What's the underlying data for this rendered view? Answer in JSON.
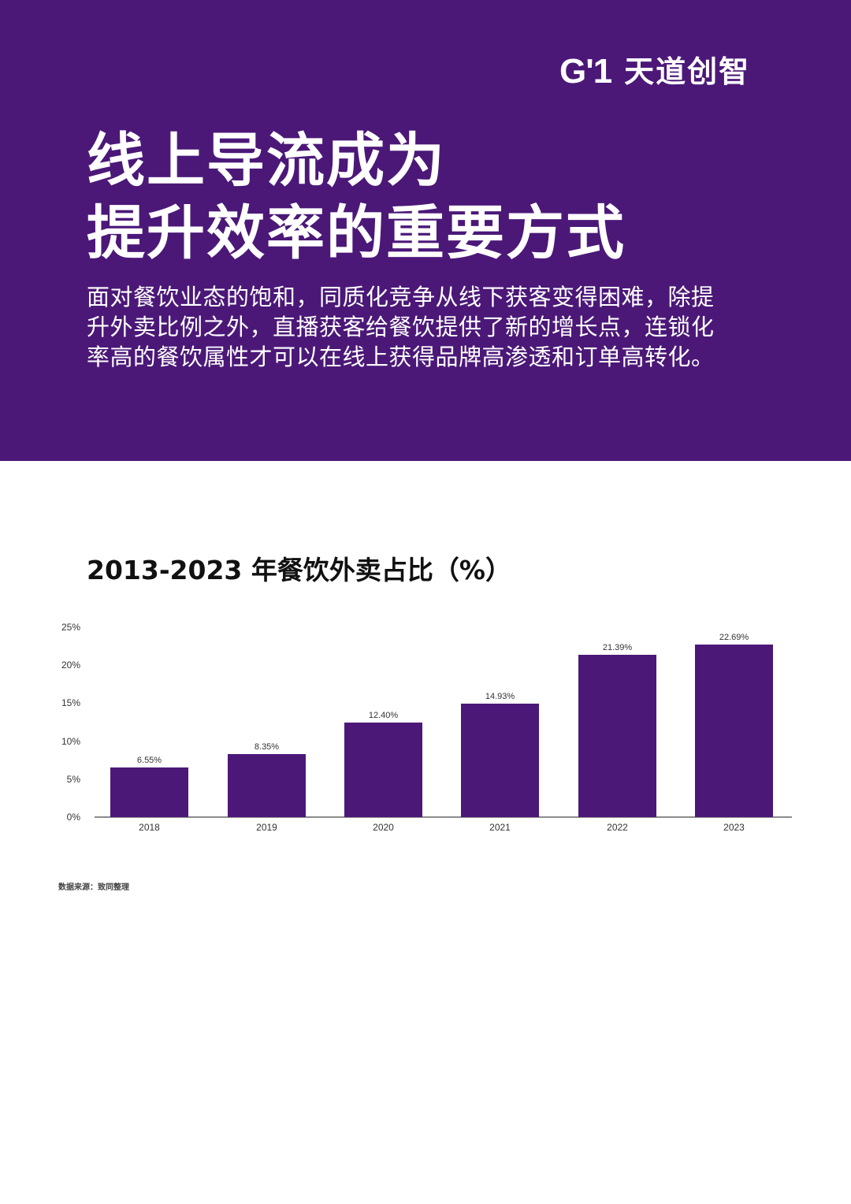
{
  "header": {
    "logo_mark": "G'1",
    "logo_text": "天道创智",
    "background_color": "#4b1878",
    "headline_lines": [
      "线上导流成为",
      "提升效率的重要方式"
    ],
    "intro_lines": [
      "面对餐饮业态的饱和，同质化竞争从线下获客变得困难，除提",
      "升外卖比例之外，直播获客给餐饮提供了新的增长点，连锁化",
      "率高的餐饮属性才可以在线上获得品牌高渗透和订单高转化。"
    ]
  },
  "chart": {
    "title": "2013-2023 年餐饮外卖占比（%）",
    "source": "数据来源：致同整理",
    "bar_color": "#4b1878"
  },
  "chart_data": {
    "type": "bar",
    "title": "2013-2023 年餐饮外卖占比（%）",
    "xlabel": "",
    "ylabel": "",
    "categories": [
      "2018",
      "2019",
      "2020",
      "2021",
      "2022",
      "2023"
    ],
    "values": [
      6.55,
      8.35,
      12.4,
      14.93,
      21.39,
      22.69
    ],
    "value_labels": [
      "6.55%",
      "8.35%",
      "12.40%",
      "14.93%",
      "21.39%",
      "22.69%"
    ],
    "yticks": [
      "0%",
      "5%",
      "10%",
      "15%",
      "20%",
      "25%"
    ],
    "ylim": [
      0,
      25
    ],
    "grid": false,
    "legend": null,
    "series_color": "#4b1878"
  }
}
